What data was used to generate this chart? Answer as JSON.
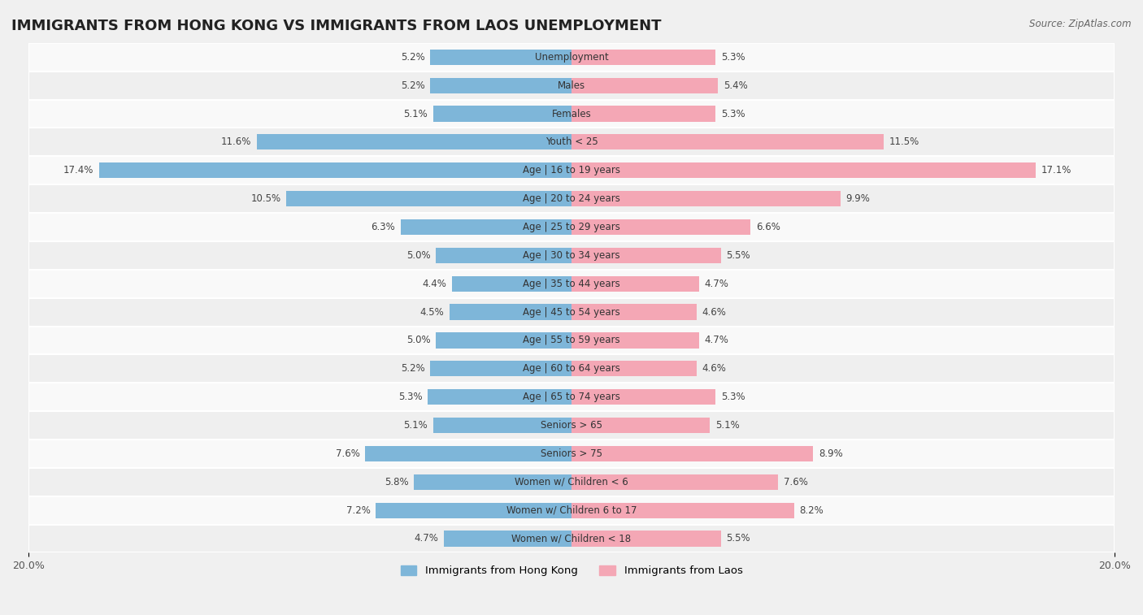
{
  "title": "IMMIGRANTS FROM HONG KONG VS IMMIGRANTS FROM LAOS UNEMPLOYMENT",
  "source": "Source: ZipAtlas.com",
  "categories": [
    "Unemployment",
    "Males",
    "Females",
    "Youth < 25",
    "Age | 16 to 19 years",
    "Age | 20 to 24 years",
    "Age | 25 to 29 years",
    "Age | 30 to 34 years",
    "Age | 35 to 44 years",
    "Age | 45 to 54 years",
    "Age | 55 to 59 years",
    "Age | 60 to 64 years",
    "Age | 65 to 74 years",
    "Seniors > 65",
    "Seniors > 75",
    "Women w/ Children < 6",
    "Women w/ Children 6 to 17",
    "Women w/ Children < 18"
  ],
  "hong_kong_values": [
    5.2,
    5.2,
    5.1,
    11.6,
    17.4,
    10.5,
    6.3,
    5.0,
    4.4,
    4.5,
    5.0,
    5.2,
    5.3,
    5.1,
    7.6,
    5.8,
    7.2,
    4.7
  ],
  "laos_values": [
    5.3,
    5.4,
    5.3,
    11.5,
    17.1,
    9.9,
    6.6,
    5.5,
    4.7,
    4.6,
    4.7,
    4.6,
    5.3,
    5.1,
    8.9,
    7.6,
    8.2,
    5.5
  ],
  "hong_kong_color": "#7eb6d9",
  "laos_color": "#f4a7b5",
  "background_color": "#f0f0f0",
  "row_color_light": "#f9f9f9",
  "row_color_dark": "#efefef",
  "max_value": 20.0,
  "legend_hong_kong": "Immigrants from Hong Kong",
  "legend_laos": "Immigrants from Laos",
  "bar_height": 0.55
}
